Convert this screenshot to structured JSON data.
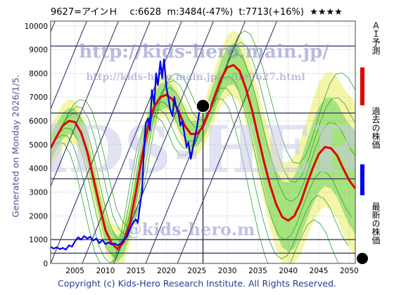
{
  "header": {
    "title": "9627=アインＨ　 c:6628  m:3484(-47%)  t:7713(+16%)  ★★★★"
  },
  "side": {
    "generated": "Generated on Monday 2026/1/5."
  },
  "footer": {
    "copyright": "Copyright (c) Kids-Hero Research Institute. All Rights Reserved."
  },
  "watermarks": {
    "url_top": "http://kids-hero.main.jp/",
    "url_mid": "http://kids-hero.main.jp/.../ile9627.html",
    "url_bottom": "@kids-hero.m",
    "logo": "KiDS-HERO"
  },
  "legend": {
    "ai_forecast": "ＡＩ予測",
    "past_price": "過去の株価",
    "latest_price": "最新の株価",
    "colors": {
      "ai_forecast": "#e00000",
      "past_price": "#0000ee",
      "latest_price": "#000000"
    }
  },
  "chart_data": {
    "type": "line",
    "xlim": [
      2001,
      2051
    ],
    "ylim": [
      0,
      10200
    ],
    "x_ticks": [
      "2005",
      "2010",
      "2015",
      "2020",
      "2025",
      "2030",
      "2035",
      "2040",
      "2045",
      "2050"
    ],
    "y_ticks": [
      "0",
      "1000",
      "2000",
      "3000",
      "4000",
      "5000",
      "6000",
      "7000",
      "8000",
      "9000",
      "10000"
    ],
    "horizontal_levels": [
      9150,
      6330,
      3560,
      1000,
      430
    ],
    "current_marker": {
      "x": 2026.0,
      "y": 6628
    },
    "vertical_marker_x": 2026.0,
    "series": [
      {
        "name": "ＡＩ予測",
        "color": "#e00000",
        "x": [
          2001,
          2002,
          2003,
          2004,
          2005,
          2006,
          2007,
          2008,
          2009,
          2010,
          2011,
          2012,
          2013,
          2014,
          2015,
          2016,
          2017,
          2018,
          2019,
          2020,
          2021,
          2022,
          2023,
          2024,
          2025,
          2026,
          2027,
          2028,
          2029,
          2030,
          2031,
          2032,
          2033,
          2034,
          2035,
          2036,
          2037,
          2038,
          2039,
          2040,
          2041,
          2042,
          2043,
          2044,
          2045,
          2046,
          2047,
          2048,
          2049,
          2050,
          2051
        ],
        "values": [
          4850,
          5350,
          5800,
          6000,
          5950,
          5500,
          4700,
          3600,
          2450,
          1400,
          850,
          600,
          900,
          1700,
          3000,
          4500,
          5800,
          6600,
          7000,
          7100,
          6900,
          6400,
          5800,
          5450,
          5450,
          5750,
          6400,
          7100,
          7800,
          8250,
          8350,
          8100,
          7400,
          6500,
          5400,
          4300,
          3300,
          2500,
          1950,
          1800,
          2000,
          2550,
          3300,
          4000,
          4600,
          4900,
          4850,
          4550,
          4000,
          3500,
          3150
        ]
      },
      {
        "name": "過去の株価",
        "color": "#0000ee",
        "x": [
          2001.0,
          2001.5,
          2002.0,
          2002.5,
          2003.0,
          2003.5,
          2004.0,
          2004.5,
          2005.0,
          2005.5,
          2006.0,
          2006.5,
          2007.0,
          2007.5,
          2008.0,
          2008.5,
          2009.0,
          2009.5,
          2010.0,
          2010.5,
          2011.0,
          2011.5,
          2012.0,
          2012.5,
          2013.0,
          2013.5,
          2014.0,
          2014.5,
          2015.0,
          2015.3,
          2015.6,
          2016.0,
          2016.3,
          2016.6,
          2017.0,
          2017.3,
          2017.6,
          2018.0,
          2018.3,
          2018.6,
          2019.0,
          2019.3,
          2019.6,
          2020.0,
          2020.3,
          2020.6,
          2021.0,
          2021.3,
          2021.6,
          2022.0,
          2022.3,
          2022.6,
          2023.0,
          2023.3,
          2023.6,
          2024.0,
          2024.3,
          2024.6,
          2025.0,
          2025.3,
          2025.6,
          2026.0
        ],
        "values": [
          700,
          620,
          680,
          600,
          650,
          580,
          760,
          700,
          930,
          1100,
          1000,
          1150,
          1050,
          1120,
          960,
          1050,
          850,
          990,
          810,
          880,
          800,
          840,
          760,
          820,
          1000,
          1100,
          1450,
          1700,
          1850,
          1700,
          2300,
          3050,
          4700,
          5900,
          6100,
          5600,
          7300,
          6700,
          8000,
          7500,
          8500,
          7800,
          8600,
          7400,
          7000,
          6500,
          6200,
          7000,
          6600,
          6300,
          5800,
          6000,
          5400,
          4900,
          5100,
          4400,
          4800,
          5200,
          5700,
          6200,
          6700,
          6628
        ]
      }
    ]
  }
}
